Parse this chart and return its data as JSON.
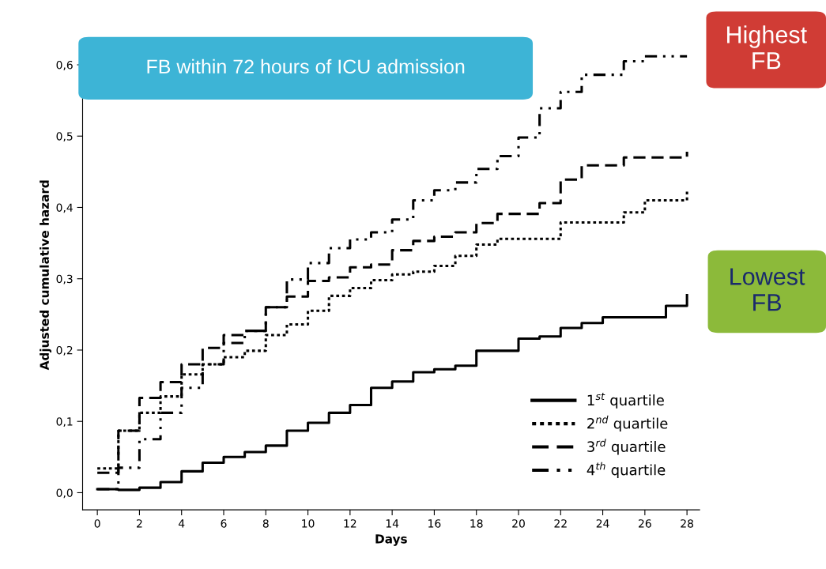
{
  "chart_data": {
    "type": "step",
    "xlabel": "Days",
    "ylabel": "Adjusted cumulative hazard",
    "x": [
      0,
      1,
      2,
      3,
      4,
      5,
      6,
      7,
      8,
      9,
      10,
      11,
      12,
      13,
      14,
      15,
      16,
      17,
      18,
      19,
      20,
      21,
      22,
      23,
      24,
      25,
      26,
      27,
      28
    ],
    "xlim": [
      -0.7,
      28.6
    ],
    "xticks": [
      0,
      2,
      4,
      6,
      8,
      10,
      12,
      14,
      16,
      18,
      20,
      22,
      24,
      26,
      28
    ],
    "ylim": [
      -0.024,
      0.635
    ],
    "yticks": [
      {
        "value": 0,
        "label": "0,0"
      },
      {
        "value": 0.1,
        "label": "0,1"
      },
      {
        "value": 0.2,
        "label": "0,2"
      },
      {
        "value": 0.3,
        "label": "0,3"
      },
      {
        "value": 0.4,
        "label": "0,4"
      },
      {
        "value": 0.5,
        "label": "0,5"
      },
      {
        "value": 0.6,
        "label": "0,6"
      }
    ],
    "grid": false,
    "legend": "bottom right",
    "marker": "none",
    "series": [
      {
        "name": "1$^{st}$ quartile",
        "color": "#000000",
        "line_style": "solid",
        "values": [
          0.005,
          0.004,
          0.007,
          0.015,
          0.03,
          0.042,
          0.05,
          0.057,
          0.066,
          0.087,
          0.098,
          0.112,
          0.123,
          0.147,
          0.156,
          0.169,
          0.173,
          0.178,
          0.199,
          0.199,
          0.216,
          0.219,
          0.231,
          0.238,
          0.246,
          0.246,
          0.246,
          0.262,
          0.277
        ]
      },
      {
        "name": "2$^{nd}$ quartile",
        "color": "#000000",
        "line_style": "dotted",
        "values": [
          0.034,
          0.087,
          0.112,
          0.135,
          0.166,
          0.18,
          0.19,
          0.199,
          0.221,
          0.236,
          0.255,
          0.276,
          0.287,
          0.298,
          0.306,
          0.31,
          0.318,
          0.332,
          0.348,
          0.356,
          0.356,
          0.356,
          0.379,
          0.379,
          0.379,
          0.393,
          0.41,
          0.41,
          0.423
        ]
      },
      {
        "name": "3$^{rd}$ quartile",
        "color": "#000000",
        "line_style": "dashed",
        "values": [
          0.028,
          0.087,
          0.133,
          0.155,
          0.18,
          0.203,
          0.221,
          0.227,
          0.26,
          0.275,
          0.297,
          0.302,
          0.316,
          0.32,
          0.34,
          0.353,
          0.359,
          0.365,
          0.378,
          0.391,
          0.391,
          0.406,
          0.439,
          0.459,
          0.459,
          0.47,
          0.47,
          0.47,
          0.478
        ]
      },
      {
        "name": "4$^{th}$ quartile",
        "color": "#000000",
        "line_style": "dashdotdot",
        "values": [
          0.005,
          0.035,
          0.075,
          0.112,
          0.147,
          0.18,
          0.21,
          0.227,
          0.26,
          0.299,
          0.322,
          0.343,
          0.355,
          0.365,
          0.383,
          0.41,
          0.424,
          0.435,
          0.454,
          0.472,
          0.498,
          0.539,
          0.562,
          0.586,
          0.586,
          0.605,
          0.612,
          0.612,
          0.612
        ]
      }
    ],
    "annotations": [
      "FB within 72 hours of ICU admission",
      "Highest FB",
      "Lowest FB"
    ]
  }
}
